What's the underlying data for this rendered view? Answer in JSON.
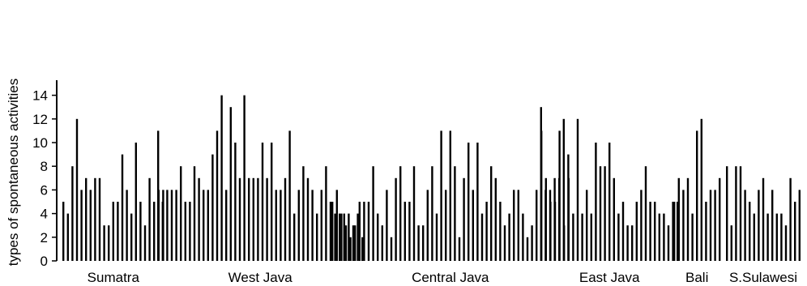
{
  "chart_data": {
    "type": "bar",
    "title": "",
    "xlabel": "",
    "ylabel": "types of spontaneous activities",
    "ylim": [
      0,
      15
    ],
    "yticks": [
      0,
      2,
      4,
      6,
      8,
      10,
      12,
      14
    ],
    "grid": false,
    "legend": "none",
    "bar_color": "#000000",
    "groups": [
      {
        "name": "Sumatra",
        "values": [
          5,
          4,
          8,
          12,
          6,
          7,
          6,
          7,
          7,
          3,
          3,
          5,
          5,
          9,
          6,
          4,
          10,
          5,
          3,
          7,
          5,
          6,
          6
        ]
      },
      {
        "name": "West Java",
        "values": [
          11,
          5,
          6,
          6,
          6,
          8,
          5,
          5,
          8,
          7,
          6,
          6,
          9,
          11,
          14,
          6,
          13,
          10,
          7,
          14,
          7,
          7,
          7,
          10,
          7,
          10,
          6,
          6,
          7,
          11,
          4,
          6,
          8,
          7,
          6,
          4,
          6,
          8,
          5,
          4,
          4,
          4,
          4,
          3,
          4,
          2
        ]
      },
      {
        "name": "Central Java",
        "values": [
          5,
          6,
          4,
          3,
          2,
          3,
          5,
          5,
          5,
          8,
          4,
          3,
          6,
          2,
          7,
          8,
          5,
          5,
          8,
          3,
          3,
          6,
          8,
          4,
          11,
          6,
          11,
          8,
          2,
          7,
          10,
          6,
          10,
          4,
          5,
          8,
          7,
          5,
          3,
          4,
          6,
          6,
          4,
          2,
          3,
          6,
          13,
          6,
          6,
          7,
          7,
          12,
          9
        ]
      },
      {
        "name": "East Java",
        "values": [
          11,
          7,
          5,
          5,
          11,
          3,
          7,
          4,
          12,
          4,
          6,
          4,
          10,
          8,
          8,
          10,
          7,
          4,
          5,
          3,
          3,
          5,
          6,
          8,
          5,
          5,
          4,
          4,
          3,
          5,
          5
        ]
      },
      {
        "name": "Bali",
        "values": [
          5,
          7,
          6,
          7,
          4,
          11,
          12,
          5,
          6,
          6,
          7
        ]
      },
      {
        "name": "S.Sulawesi",
        "values": [
          8,
          3,
          8,
          8,
          6,
          5,
          4,
          6,
          7,
          4,
          6,
          4,
          4,
          3,
          7,
          5,
          6
        ]
      }
    ]
  }
}
